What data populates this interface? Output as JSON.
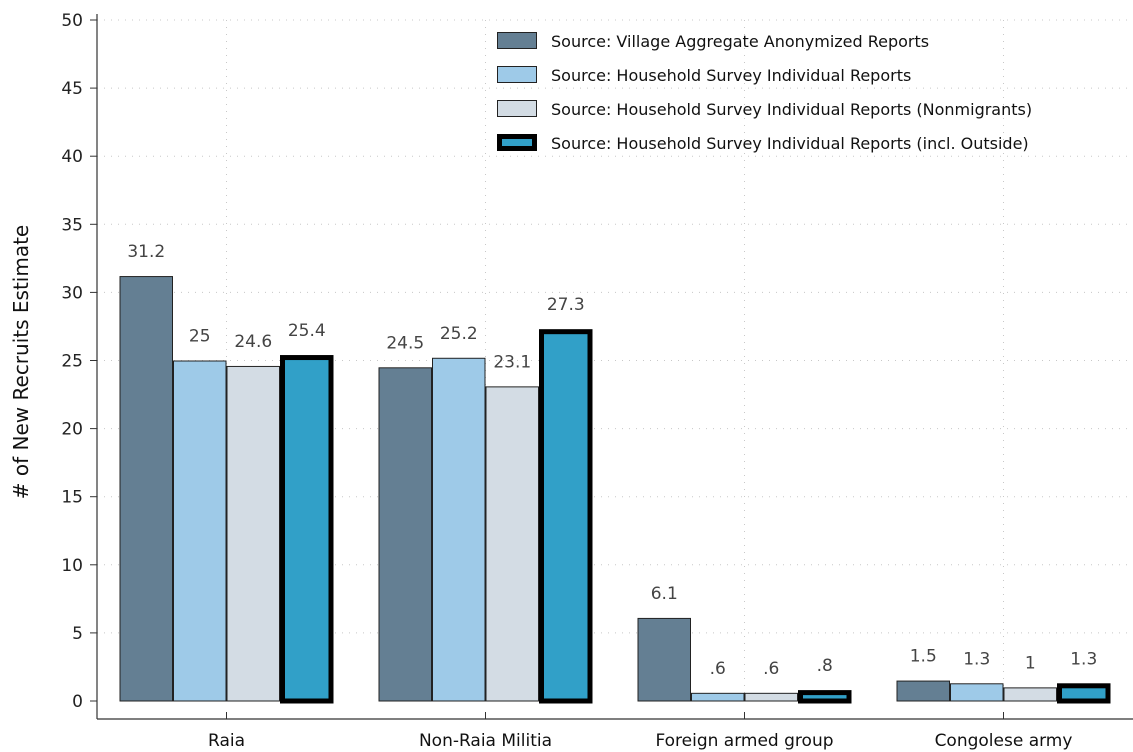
{
  "chart_data": {
    "type": "bar",
    "categories": [
      "Raia",
      "Non-Raia Militia",
      "Foreign armed group",
      "Congolese army"
    ],
    "series": [
      {
        "name": "Source: Village Aggregate Anonymized Reports",
        "values": [
          31.2,
          24.5,
          6.1,
          1.5
        ],
        "labels": [
          "31.2",
          "24.5",
          "6.1",
          "1.5"
        ],
        "color": "#647f93",
        "border": "#222222",
        "border_weight": "thin"
      },
      {
        "name": "Source: Household Survey Individual Reports",
        "values": [
          25,
          25.2,
          0.6,
          1.3
        ],
        "labels": [
          "25",
          "25.2",
          ".6",
          "1.3"
        ],
        "color": "#9ecae8",
        "border": "#222222",
        "border_weight": "thin"
      },
      {
        "name": "Source: Household Survey Individual Reports (Nonmigrants)",
        "values": [
          24.6,
          23.1,
          0.6,
          1
        ],
        "labels": [
          "24.6",
          "23.1",
          ".6",
          "1"
        ],
        "color": "#d3dce4",
        "border": "#222222",
        "border_weight": "thin"
      },
      {
        "name": "Source: Household Survey Individual Reports  (incl. Outside)",
        "values": [
          25.4,
          27.3,
          0.8,
          1.3
        ],
        "labels": [
          "25.4",
          "27.3",
          ".8",
          "1.3"
        ],
        "color": "#31a0c8",
        "border": "#000000",
        "border_weight": "thick"
      }
    ],
    "title": "",
    "xlabel": "",
    "ylabel": "# of New Recruits Estimate",
    "ylim": [
      0,
      50
    ],
    "yticks": [
      0,
      5,
      10,
      15,
      20,
      25,
      30,
      35,
      40,
      45,
      50
    ],
    "grid": "dotted",
    "legend_position": "top-right"
  }
}
